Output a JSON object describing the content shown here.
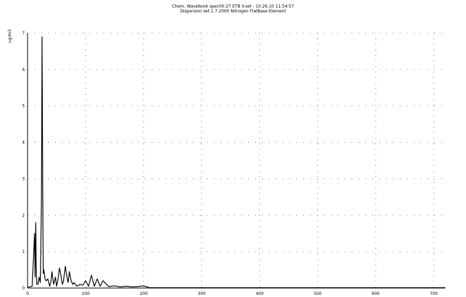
{
  "chart_data": {
    "type": "line",
    "title": "Chem. Wavebook spec00:27 ETB V.set - 10.26.10 11:54:57",
    "subtitle": "Dispersion set 1.7.2000 Nitrogen FlatBase Element",
    "ylabel": "ug/m3",
    "xlabel": "",
    "xlim": [
      0,
      720
    ],
    "ylim": [
      0,
      7
    ],
    "x_ticks": [
      "0",
      "100",
      "200",
      "300",
      "400",
      "500",
      "600",
      "700"
    ],
    "y_ticks": [
      "0",
      "1",
      "2",
      "3",
      "4",
      "5",
      "6",
      "7"
    ],
    "grid": true,
    "series": [
      {
        "color": "#000000",
        "x": [
          0,
          8,
          12,
          13,
          14,
          15,
          16,
          18,
          20,
          22,
          24,
          25,
          26,
          27,
          28,
          30,
          32,
          35,
          38,
          40,
          42,
          45,
          48,
          50,
          52,
          55,
          58,
          60,
          62,
          65,
          68,
          70,
          72,
          75,
          78,
          80,
          85,
          90,
          95,
          100,
          105,
          110,
          115,
          120,
          125,
          130,
          140,
          150,
          160,
          170,
          180,
          190,
          200,
          210,
          250,
          300,
          400,
          500,
          600,
          720
        ],
        "y": [
          0.02,
          0.05,
          1.5,
          0.3,
          1.8,
          0.4,
          0.1,
          0.1,
          0.3,
          0.15,
          2.5,
          6.9,
          3.0,
          0.4,
          0.5,
          0.25,
          0.2,
          0.25,
          0.05,
          0.15,
          0.45,
          0.1,
          0.3,
          0.05,
          0.2,
          0.55,
          0.3,
          0.1,
          0.2,
          0.6,
          0.3,
          0.15,
          0.45,
          0.2,
          0.1,
          0.15,
          0.05,
          0.1,
          0.08,
          0.2,
          0.05,
          0.35,
          0.05,
          0.25,
          0.05,
          0.2,
          0.04,
          0.06,
          0.03,
          0.05,
          0.03,
          0.04,
          0.06,
          0.01,
          0.01,
          0.01,
          0.01,
          0.01,
          0.01,
          0.01
        ]
      }
    ]
  }
}
